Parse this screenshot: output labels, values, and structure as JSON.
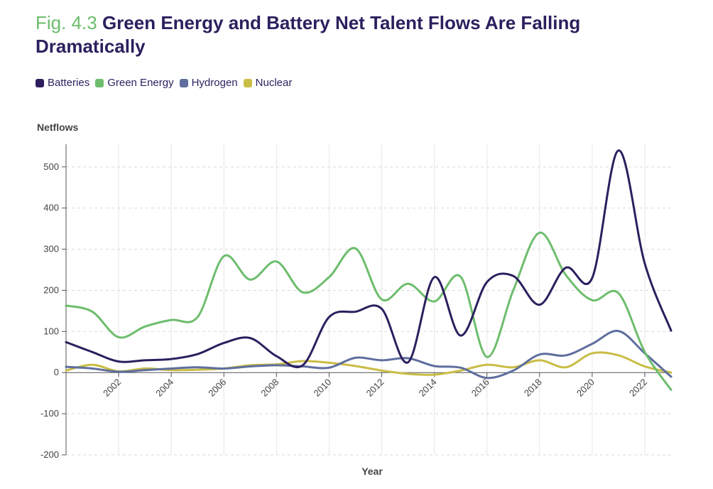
{
  "title": {
    "fig_label": "Fig. 4.3",
    "text": "Green Energy and Battery Net Talent Flows Are Falling Dramatically"
  },
  "legend": [
    {
      "name": "Batteries",
      "color": "#2d1f5e"
    },
    {
      "name": "Green Energy",
      "color": "#6dbd6d"
    },
    {
      "name": "Hydrogen",
      "color": "#5e6e9e"
    },
    {
      "name": "Nuclear",
      "color": "#c9bd45"
    }
  ],
  "chart_data": {
    "type": "line",
    "ylabel": "Netflows",
    "xlabel": "Year",
    "xlim": [
      2000,
      2023
    ],
    "ylim": [
      -200,
      550
    ],
    "yticks": [
      -200,
      -100,
      0,
      100,
      200,
      300,
      400,
      500
    ],
    "xticks": [
      2002,
      2004,
      2006,
      2008,
      2010,
      2012,
      2014,
      2016,
      2018,
      2020,
      2022
    ],
    "grid": true,
    "series": [
      {
        "name": "Batteries",
        "color": "#2d1f5e",
        "x": [
          2000,
          2001,
          2002,
          2003,
          2004,
          2005,
          2006,
          2007,
          2008,
          2009,
          2010,
          2011,
          2012,
          2013,
          2014,
          2015,
          2016,
          2017,
          2018,
          2019,
          2020,
          2021,
          2022,
          2023
        ],
        "values": [
          74,
          50,
          27,
          30,
          33,
          45,
          72,
          84,
          40,
          18,
          135,
          148,
          155,
          25,
          232,
          90,
          220,
          235,
          165,
          255,
          230,
          540,
          265,
          102
        ]
      },
      {
        "name": "Green Energy",
        "color": "#6dbd6d",
        "x": [
          2000,
          2001,
          2002,
          2003,
          2004,
          2005,
          2006,
          2007,
          2008,
          2009,
          2010,
          2011,
          2012,
          2013,
          2014,
          2015,
          2016,
          2017,
          2018,
          2019,
          2020,
          2021,
          2022,
          2023
        ],
        "values": [
          163,
          148,
          86,
          112,
          128,
          135,
          283,
          226,
          270,
          195,
          232,
          302,
          178,
          216,
          173,
          233,
          38,
          200,
          340,
          237,
          176,
          193,
          50,
          -42
        ]
      },
      {
        "name": "Hydrogen",
        "color": "#5e6e9e",
        "x": [
          2000,
          2001,
          2002,
          2003,
          2004,
          2005,
          2006,
          2007,
          2008,
          2009,
          2010,
          2011,
          2012,
          2013,
          2014,
          2015,
          2016,
          2017,
          2018,
          2019,
          2020,
          2021,
          2022,
          2023
        ],
        "values": [
          14,
          10,
          2,
          6,
          10,
          13,
          10,
          15,
          18,
          15,
          12,
          36,
          30,
          35,
          16,
          12,
          -13,
          5,
          44,
          42,
          70,
          101,
          47,
          -10
        ]
      },
      {
        "name": "Nuclear",
        "color": "#c9bd45",
        "x": [
          2000,
          2001,
          2002,
          2003,
          2004,
          2005,
          2006,
          2007,
          2008,
          2009,
          2010,
          2011,
          2012,
          2013,
          2014,
          2015,
          2016,
          2017,
          2018,
          2019,
          2020,
          2021,
          2022,
          2023
        ],
        "values": [
          5,
          19,
          3,
          10,
          6,
          7,
          10,
          18,
          20,
          28,
          24,
          16,
          5,
          -3,
          -5,
          5,
          19,
          13,
          30,
          13,
          47,
          42,
          15,
          0
        ]
      }
    ]
  }
}
